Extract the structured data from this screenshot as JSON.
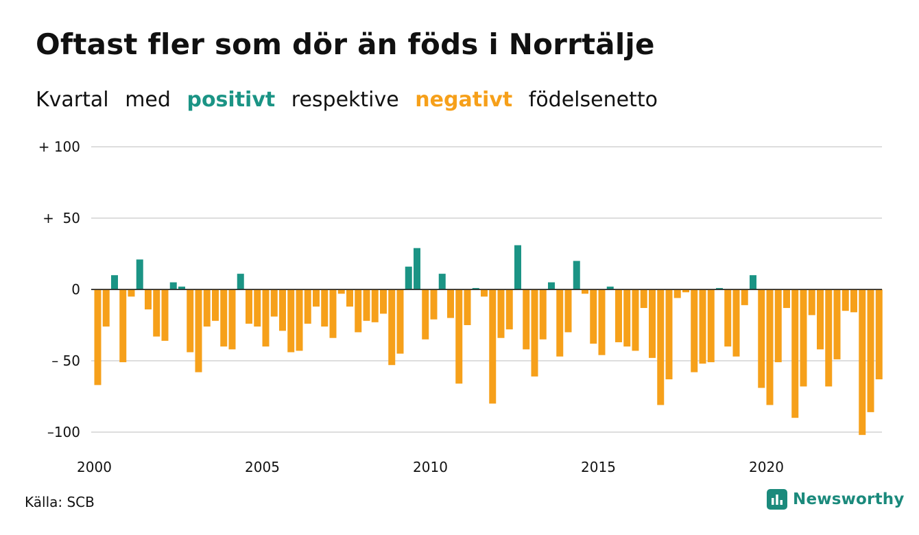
{
  "title": "Oftast fler som dör än föds i Norrtälje",
  "subtitle": {
    "part1": "Kvartal",
    "part2": "med",
    "positive": "positivt",
    "part3": "respektive",
    "negative": "negativt",
    "part4": "födelsenetto"
  },
  "colors": {
    "positive": "#1b9485",
    "negative": "#f6a01a",
    "grid": "#dddddd",
    "text": "#111111"
  },
  "source": "Källa: SCB",
  "logo": {
    "text": "Newsworthy",
    "icon": "bar-chart-icon"
  },
  "chart_data": {
    "type": "bar",
    "title": "Oftast fler som dör än föds i Norrtälje",
    "subtitle": "Kvartal med positivt respektive negativt födelsenetto",
    "x_start": "2000 Q1",
    "x_end": "2023 Q2",
    "x_ticks": [
      "2000",
      "2005",
      "2010",
      "2015",
      "2020"
    ],
    "y_ticks": [
      {
        "value": 100,
        "label": "+ 100"
      },
      {
        "value": 50,
        "label": "+  50"
      },
      {
        "value": 0,
        "label": "0"
      },
      {
        "value": -50,
        "label": "– 50"
      },
      {
        "value": -100,
        "label": "–100"
      }
    ],
    "ylim": [
      -102,
      100
    ],
    "grid": true,
    "categories": [
      "2000 Q1",
      "2000 Q2",
      "2000 Q3",
      "2000 Q4",
      "2001 Q1",
      "2001 Q2",
      "2001 Q3",
      "2001 Q4",
      "2002 Q1",
      "2002 Q2",
      "2002 Q3",
      "2002 Q4",
      "2003 Q1",
      "2003 Q2",
      "2003 Q3",
      "2003 Q4",
      "2004 Q1",
      "2004 Q2",
      "2004 Q3",
      "2004 Q4",
      "2005 Q1",
      "2005 Q2",
      "2005 Q3",
      "2005 Q4",
      "2006 Q1",
      "2006 Q2",
      "2006 Q3",
      "2006 Q4",
      "2007 Q1",
      "2007 Q2",
      "2007 Q3",
      "2007 Q4",
      "2008 Q1",
      "2008 Q2",
      "2008 Q3",
      "2008 Q4",
      "2009 Q1",
      "2009 Q2",
      "2009 Q3",
      "2009 Q4",
      "2010 Q1",
      "2010 Q2",
      "2010 Q3",
      "2010 Q4",
      "2011 Q1",
      "2011 Q2",
      "2011 Q3",
      "2011 Q4",
      "2012 Q1",
      "2012 Q2",
      "2012 Q3",
      "2012 Q4",
      "2013 Q1",
      "2013 Q2",
      "2013 Q3",
      "2013 Q4",
      "2014 Q1",
      "2014 Q2",
      "2014 Q3",
      "2014 Q4",
      "2015 Q1",
      "2015 Q2",
      "2015 Q3",
      "2015 Q4",
      "2016 Q1",
      "2016 Q2",
      "2016 Q3",
      "2016 Q4",
      "2017 Q1",
      "2017 Q2",
      "2017 Q3",
      "2017 Q4",
      "2018 Q1",
      "2018 Q2",
      "2018 Q3",
      "2018 Q4",
      "2019 Q1",
      "2019 Q2",
      "2019 Q3",
      "2019 Q4",
      "2020 Q1",
      "2020 Q2",
      "2020 Q3",
      "2020 Q4",
      "2021 Q1",
      "2021 Q2",
      "2021 Q3",
      "2021 Q4",
      "2022 Q1",
      "2022 Q2",
      "2022 Q3",
      "2022 Q4",
      "2023 Q1",
      "2023 Q2"
    ],
    "values": [
      -67,
      -26,
      10,
      -51,
      -5,
      21,
      -14,
      -33,
      -36,
      5,
      2,
      -44,
      -58,
      -26,
      -22,
      -40,
      -42,
      11,
      -24,
      -26,
      -40,
      -19,
      -29,
      -44,
      -43,
      -24,
      -12,
      -26,
      -34,
      -3,
      -12,
      -30,
      -22,
      -23,
      -17,
      -53,
      -45,
      16,
      29,
      -35,
      -21,
      11,
      -20,
      -66,
      -25,
      1,
      -5,
      -80,
      -34,
      -28,
      31,
      -42,
      -61,
      -35,
      5,
      -47,
      -30,
      20,
      -3,
      -38,
      -46,
      2,
      -37,
      -40,
      -43,
      -13,
      -48,
      -81,
      -63,
      -6,
      -2,
      -58,
      -52,
      -51,
      1,
      -40,
      -47,
      -11,
      10,
      -69,
      -81,
      -51,
      -13,
      -90,
      -68,
      -18,
      -42,
      -68,
      -49,
      -15,
      -16,
      -102,
      -86,
      -63
    ]
  }
}
